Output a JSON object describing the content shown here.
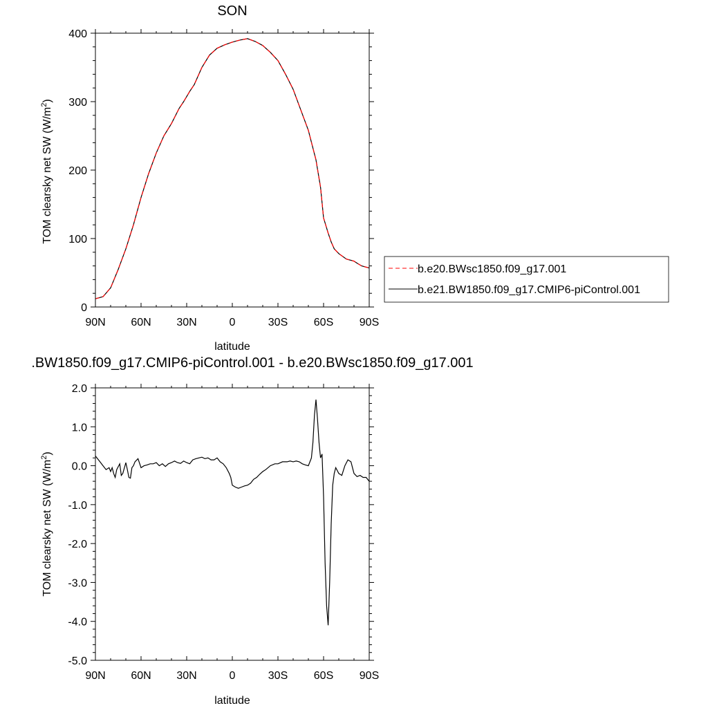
{
  "colors": {
    "case1": "#ff0000",
    "case2": "#000000",
    "frame": "#000000",
    "background": "#ffffff"
  },
  "top": {
    "title": "SON",
    "xlabel": "latitude",
    "ylabel_main": "TOM clearsky net SW (W/m",
    "ylabel_sup": "2",
    "ylabel_close": ")",
    "legend": {
      "case1": "b.e20.BWsc1850.f09_g17.001",
      "case2": "b.e21.BW1850.f09_g17.CMIP6-piControl.001"
    }
  },
  "bottom": {
    "title": ".BW1850.f09_g17.CMIP6-piControl.001 - b.e20.BWsc1850.f09_g17.001",
    "xlabel": "latitude",
    "ylabel_main": "TOM clearsky net SW (W/m",
    "ylabel_sup": "2",
    "ylabel_close": ")"
  },
  "chart_data": [
    {
      "type": "line",
      "title": "SON",
      "xlabel": "latitude",
      "ylabel": "TOM clearsky net SW (W/m2)",
      "xlim": [
        90,
        -90
      ],
      "ylim": [
        0,
        400
      ],
      "x_ticks": [
        90,
        60,
        30,
        0,
        -30,
        -60,
        -90
      ],
      "x_tick_labels": [
        "90N",
        "60N",
        "30N",
        "0",
        "30S",
        "60S",
        "90S"
      ],
      "y_ticks": [
        0,
        100,
        200,
        300,
        400
      ],
      "y_tick_labels": [
        "0",
        "100",
        "200",
        "300",
        "400"
      ],
      "legend_position": "right",
      "series": [
        {
          "name": "b.e20.BWsc1850.f09_g17.001",
          "style": "dashed",
          "color": "#ff0000",
          "x": [
            90,
            85,
            80,
            75,
            70,
            65,
            60,
            55,
            50,
            45,
            40,
            35,
            32,
            28,
            25,
            20,
            15,
            10,
            5,
            0,
            -5,
            -10,
            -15,
            -20,
            -25,
            -30,
            -35,
            -40,
            -45,
            -50,
            -55,
            -58,
            -60,
            -63,
            -65,
            -67,
            -70,
            -75,
            -80,
            -82,
            -85,
            -90
          ],
          "y": [
            12,
            15,
            28,
            55,
            85,
            120,
            160,
            195,
            225,
            250,
            268,
            290,
            300,
            315,
            325,
            350,
            368,
            378,
            383,
            387,
            390,
            392,
            388,
            382,
            372,
            360,
            340,
            318,
            288,
            258,
            215,
            175,
            130,
            108,
            95,
            85,
            78,
            70,
            67,
            64,
            60,
            57
          ]
        },
        {
          "name": "b.e21.BW1850.f09_g17.CMIP6-piControl.001",
          "style": "solid",
          "color": "#000000",
          "x": [
            90,
            85,
            80,
            75,
            70,
            65,
            60,
            55,
            50,
            45,
            40,
            35,
            32,
            28,
            25,
            20,
            15,
            10,
            5,
            0,
            -5,
            -10,
            -15,
            -20,
            -25,
            -30,
            -35,
            -40,
            -45,
            -50,
            -55,
            -58,
            -60,
            -63,
            -65,
            -67,
            -70,
            -75,
            -80,
            -82,
            -85,
            -90
          ],
          "y": [
            12,
            15,
            28,
            55,
            85,
            120,
            160,
            195,
            225,
            250,
            268,
            290,
            300,
            315,
            325,
            350,
            368,
            378,
            383,
            387,
            390,
            392,
            388,
            382,
            372,
            360,
            340,
            318,
            288,
            258,
            215,
            175,
            130,
            108,
            95,
            85,
            78,
            70,
            67,
            64,
            60,
            57
          ]
        }
      ]
    },
    {
      "type": "line",
      "title": ".BW1850.f09_g17.CMIP6-piControl.001 - b.e20.BWsc1850.f09_g17.001",
      "xlabel": "latitude",
      "ylabel": "TOM clearsky net SW (W/m2)",
      "xlim": [
        90,
        -90
      ],
      "ylim": [
        -5,
        2
      ],
      "x_ticks": [
        90,
        60,
        30,
        0,
        -30,
        -60,
        -90
      ],
      "x_tick_labels": [
        "90N",
        "60N",
        "30N",
        "0",
        "30S",
        "60S",
        "90S"
      ],
      "y_ticks": [
        2,
        1,
        0,
        -1,
        -2,
        -3,
        -4,
        -5
      ],
      "y_tick_labels": [
        "2.0",
        "1.0",
        "0.0",
        "-1.0",
        "-2.0",
        "-3.0",
        "-4.0",
        "-5.0"
      ],
      "series": [
        {
          "style": "solid",
          "color": "#000000",
          "x": [
            90,
            87,
            85,
            83,
            81,
            80,
            79,
            78,
            77,
            76,
            74,
            73,
            72,
            70,
            69,
            68,
            67,
            66,
            65,
            64,
            62,
            60,
            58,
            56,
            54,
            52,
            50,
            48,
            46,
            44,
            42,
            40,
            38,
            36,
            34,
            32,
            30,
            28,
            26,
            24,
            22,
            20,
            18,
            16,
            14,
            12,
            10,
            8,
            6,
            4,
            2,
            1,
            0,
            -2,
            -4,
            -6,
            -8,
            -10,
            -12,
            -14,
            -16,
            -18,
            -20,
            -22,
            -25,
            -28,
            -30,
            -33,
            -36,
            -38,
            -40,
            -42,
            -44,
            -46,
            -48,
            -50,
            -52,
            -53,
            -54,
            -55,
            -56,
            -57,
            -58,
            -59,
            -60,
            -61,
            -62,
            -63,
            -64,
            -65,
            -66,
            -67,
            -68,
            -70,
            -72,
            -74,
            -76,
            -78,
            -80,
            -82,
            -84,
            -86,
            -88,
            -90
          ],
          "y": [
            0.25,
            0.1,
            0.0,
            -0.1,
            -0.05,
            -0.15,
            -0.05,
            -0.2,
            -0.3,
            -0.1,
            0.05,
            -0.25,
            -0.2,
            0.08,
            -0.1,
            -0.3,
            -0.32,
            -0.05,
            0.0,
            0.1,
            0.18,
            -0.05,
            0.0,
            0.02,
            0.05,
            0.05,
            0.08,
            0.0,
            0.05,
            -0.02,
            0.05,
            0.08,
            0.12,
            0.08,
            0.06,
            0.12,
            0.08,
            0.05,
            0.15,
            0.18,
            0.2,
            0.22,
            0.18,
            0.2,
            0.15,
            0.15,
            0.2,
            0.1,
            0.05,
            -0.05,
            -0.2,
            -0.3,
            -0.5,
            -0.55,
            -0.58,
            -0.55,
            -0.52,
            -0.5,
            -0.45,
            -0.35,
            -0.3,
            -0.22,
            -0.15,
            -0.1,
            0.0,
            0.05,
            0.05,
            0.1,
            0.1,
            0.12,
            0.1,
            0.12,
            0.1,
            0.05,
            0.02,
            0.0,
            0.2,
            0.6,
            1.3,
            1.7,
            1.2,
            0.6,
            0.2,
            0.3,
            -0.8,
            -2.5,
            -3.6,
            -4.1,
            -3.0,
            -1.5,
            -0.5,
            -0.2,
            -0.05,
            -0.2,
            -0.25,
            0.0,
            0.15,
            0.1,
            -0.2,
            -0.28,
            -0.25,
            -0.3,
            -0.3,
            -0.4
          ]
        }
      ]
    }
  ]
}
